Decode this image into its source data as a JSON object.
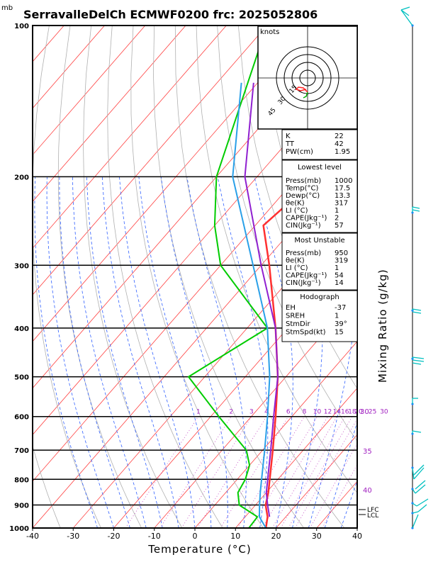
{
  "header": {
    "units_mb": "mb",
    "title": "SerravalleDelCh ECMWF0200 frc: 2025052806"
  },
  "chart_data": {
    "type": "skew-t",
    "xlabel": "Temperature (°C)",
    "ylabel_right": "Mixing Ratio (g/kg)",
    "x_ticks": [
      "-40",
      "-30",
      "-20",
      "-10",
      "0",
      "10",
      "20",
      "30",
      "40"
    ],
    "p_ticks": [
      "100",
      "200",
      "300",
      "400",
      "500",
      "600",
      "700",
      "800",
      "900",
      "1000"
    ],
    "xlim": [
      -40,
      40
    ],
    "plim": [
      1000,
      100
    ],
    "mixing_ratio_labels": [
      "1",
      "2",
      "3",
      "4",
      "6",
      "8",
      "10",
      "12",
      "14",
      "16",
      "18",
      "20",
      "25",
      "30"
    ],
    "isotherm_labels": [
      "30",
      "35",
      "40"
    ],
    "lcl_labels": [
      "LFC",
      "LCL"
    ],
    "series": [
      {
        "name": "temperature",
        "color": "#ff3030",
        "p": [
          1000,
          950,
          900,
          850,
          800,
          700,
          600,
          500,
          400,
          300,
          250,
          200,
          100
        ],
        "t": [
          17.5,
          15.5,
          12.5,
          10.5,
          8.0,
          2.5,
          -4.0,
          -12.0,
          -23.0,
          -38.0,
          -48.0,
          -45.0,
          -38.0
        ]
      },
      {
        "name": "dewpoint",
        "color": "#00cc00",
        "p": [
          1000,
          950,
          900,
          850,
          800,
          750,
          700,
          600,
          500,
          400,
          300,
          250,
          200,
          100
        ],
        "t": [
          13.3,
          13.0,
          6.0,
          3.0,
          2.0,
          0.0,
          -4.0,
          -18.0,
          -34.0,
          -25.0,
          -50.0,
          -60.0,
          -70.0,
          -90.0
        ]
      },
      {
        "name": "parcel",
        "color": "#2aa0e8",
        "p": [
          1000,
          950,
          900,
          850,
          800,
          700,
          600,
          500,
          400,
          300,
          200,
          130
        ],
        "t": [
          17.5,
          13.5,
          11.0,
          8.5,
          6.0,
          0.5,
          -6.0,
          -14.0,
          -25.0,
          -42.0,
          -66.0,
          -84.0
        ]
      },
      {
        "name": "virtual",
        "color": "#9020d0",
        "p": [
          950,
          900,
          850,
          800,
          700,
          600,
          500,
          400,
          300,
          200,
          130
        ],
        "t": [
          16.0,
          13.0,
          10.0,
          7.5,
          2.0,
          -4.5,
          -12.0,
          -23.0,
          -40.0,
          -63.0,
          -81.0
        ]
      }
    ]
  },
  "hodograph": {
    "units": "knots",
    "ring_labels": [
      "15",
      "30",
      "45"
    ]
  },
  "indices": {
    "rows": [
      {
        "label": "K",
        "value": "22"
      },
      {
        "label": "TT",
        "value": "42"
      },
      {
        "label": "PW(cm)",
        "value": "1.95"
      }
    ]
  },
  "lowest_level": {
    "title": "Lowest level",
    "rows": [
      {
        "label": "Press(mb)",
        "value": "1000"
      },
      {
        "label": "Temp(°C)",
        "value": "17.5"
      },
      {
        "label": "Dewp(°C)",
        "value": "13.3"
      },
      {
        "label": "θe(K)",
        "value": "317"
      },
      {
        "label": "LI (°C)",
        "value": "1"
      },
      {
        "label": "CAPE(Jkg⁻¹)",
        "value": "2"
      },
      {
        "label": "CIN(Jkg⁻¹)",
        "value": "57"
      }
    ]
  },
  "most_unstable": {
    "title": "Most Unstable",
    "rows": [
      {
        "label": "Press(mb)",
        "value": "950"
      },
      {
        "label": "θe(K)",
        "value": "319"
      },
      {
        "label": "LI (°C)",
        "value": "1"
      },
      {
        "label": "CAPE(Jkg⁻¹)",
        "value": "54"
      },
      {
        "label": "CIN(Jkg⁻¹)",
        "value": "14"
      }
    ]
  },
  "hodograph_stats": {
    "title": "Hodograph",
    "rows": [
      {
        "label": "EH",
        "value": "-37"
      },
      {
        "label": "SREH",
        "value": "1"
      },
      {
        "label": "StmDir",
        "value": "39°"
      },
      {
        "label": "StmSpd(kt)",
        "value": "15"
      }
    ]
  },
  "colors": {
    "temperature": "#ff3030",
    "dewpoint": "#00cc00",
    "isotherm": "#ff4040",
    "dry_adiabat": "#b0b0b0",
    "moist_adiabat": "#3060ff",
    "mixing_ratio": "#c040c0",
    "label_purple": "#a020c0",
    "wind_barb": "#00c0c0"
  }
}
